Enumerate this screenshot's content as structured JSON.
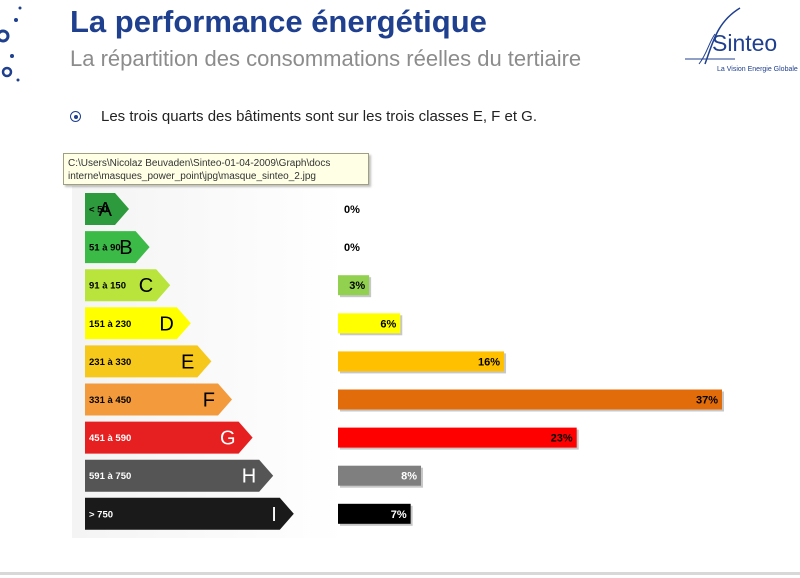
{
  "header": {
    "title": "La performance énergétique",
    "subtitle": "La répartition des consommations réelles du tertiaire"
  },
  "logo": {
    "name": "Sinteo",
    "tagline": "La Vision Energie Globale",
    "color": "#1f3f8f"
  },
  "bullet": {
    "icon": "bullet-circle-icon",
    "text": "Les trois quarts des bâtiments sont sur les trois classes E, F et G."
  },
  "tooltip": {
    "line1": "C:\\Users\\Nicolaz Beuvaden\\Sinteo-01-04-2009\\Graph\\docs",
    "line2": "interne\\masques_power_point\\jpg\\masque_sinteo_2.jpg"
  },
  "chart_data": {
    "type": "bar",
    "orientation": "horizontal",
    "xlim": [
      0,
      37
    ],
    "classes": [
      {
        "letter": "A",
        "range": "< 50",
        "arrow_color": "#2e9a3e",
        "range_color": "#000000",
        "letter_color": "#000000"
      },
      {
        "letter": "B",
        "range": "51 à 90",
        "arrow_color": "#3cba48",
        "range_color": "#000000",
        "letter_color": "#000000"
      },
      {
        "letter": "C",
        "range": "91 à 150",
        "arrow_color": "#b8e43c",
        "range_color": "#000000",
        "letter_color": "#000000"
      },
      {
        "letter": "D",
        "range": "151 à 230",
        "arrow_color": "#ffff00",
        "range_color": "#000000",
        "letter_color": "#000000"
      },
      {
        "letter": "E",
        "range": "231 à 330",
        "arrow_color": "#f7c81c",
        "range_color": "#000000",
        "letter_color": "#000000"
      },
      {
        "letter": "F",
        "range": "331 à 450",
        "arrow_color": "#f29a3c",
        "range_color": "#000000",
        "letter_color": "#000000"
      },
      {
        "letter": "G",
        "range": "451 à 590",
        "arrow_color": "#e62020",
        "range_color": "#ffffff",
        "letter_color": "#ffffff"
      },
      {
        "letter": "H",
        "range": "591 à 750",
        "arrow_color": "#555555",
        "range_color": "#ffffff",
        "letter_color": "#ffffff"
      },
      {
        "letter": "I",
        "range": "> 750",
        "arrow_color": "#1a1a1a",
        "range_color": "#ffffff",
        "letter_color": "#ffffff"
      }
    ],
    "values": [
      0,
      0,
      3,
      6,
      16,
      37,
      23,
      8,
      7
    ],
    "labels": [
      "0%",
      "0%",
      "3%",
      "6%",
      "16%",
      "37%",
      "23%",
      "8%",
      "7%"
    ],
    "bar_colors": [
      "#2e9a3e",
      "#3cba48",
      "#92d050",
      "#ffff00",
      "#ffc000",
      "#e36c0a",
      "#ff0000",
      "#7f7f7f",
      "#000000"
    ],
    "label_colors": [
      "#000000",
      "#000000",
      "#000000",
      "#000000",
      "#000000",
      "#000000",
      "#000000",
      "#ffffff",
      "#ffffff"
    ]
  }
}
